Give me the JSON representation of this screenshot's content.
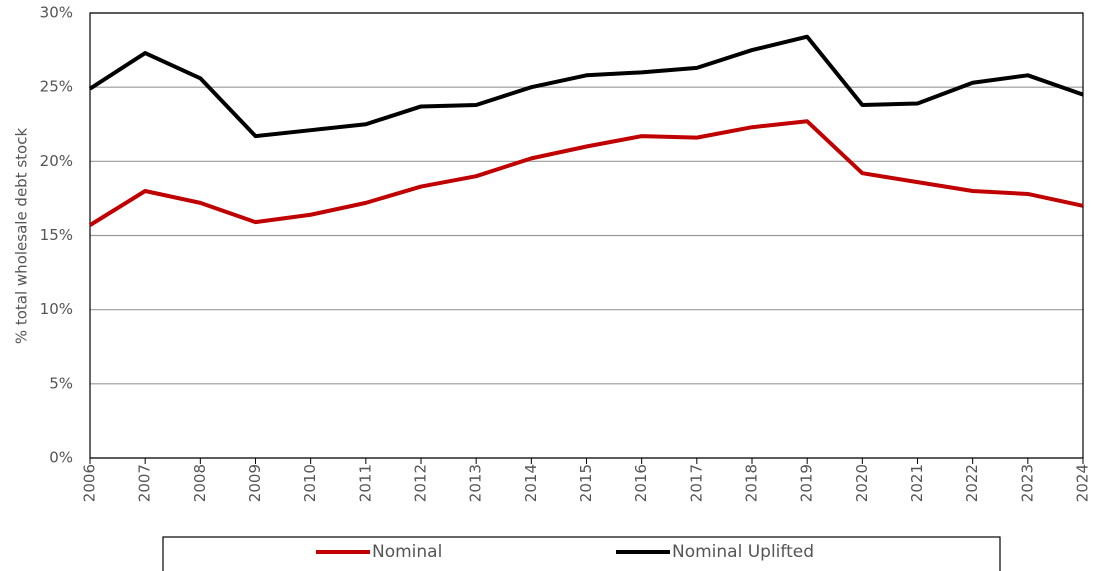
{
  "chart_data": {
    "type": "line",
    "y_label": "% total wholesale debt stock",
    "categories": [
      "2006",
      "2007",
      "2008",
      "2009",
      "2010",
      "2011",
      "2012",
      "2013",
      "2014",
      "2015",
      "2016",
      "2017",
      "2018",
      "2019",
      "2020",
      "2021",
      "2022",
      "2023",
      "2024"
    ],
    "series": [
      {
        "name": "Nominal",
        "color": "#c00000",
        "values": [
          15.7,
          18.0,
          17.2,
          15.9,
          16.4,
          17.2,
          18.3,
          19.0,
          20.2,
          21.0,
          21.7,
          21.6,
          22.3,
          22.7,
          19.2,
          18.6,
          18.0,
          17.8,
          17.0
        ]
      },
      {
        "name": "Nominal Uplifted",
        "color": "#000000",
        "values": [
          24.9,
          27.3,
          25.6,
          21.7,
          22.1,
          22.5,
          23.7,
          23.8,
          25.0,
          25.8,
          26.0,
          26.3,
          27.5,
          28.4,
          23.8,
          23.9,
          25.3,
          25.8,
          24.5
        ]
      }
    ],
    "ylim": [
      0,
      30
    ],
    "yticks": [
      {
        "value": 0,
        "label": "0%"
      },
      {
        "value": 5,
        "label": "5%"
      },
      {
        "value": 10,
        "label": "10%"
      },
      {
        "value": 15,
        "label": "15%"
      },
      {
        "value": 20,
        "label": "20%"
      },
      {
        "value": 25,
        "label": "25%"
      },
      {
        "value": 30,
        "label": "30%"
      }
    ],
    "grid": true,
    "legend": "bottom"
  }
}
